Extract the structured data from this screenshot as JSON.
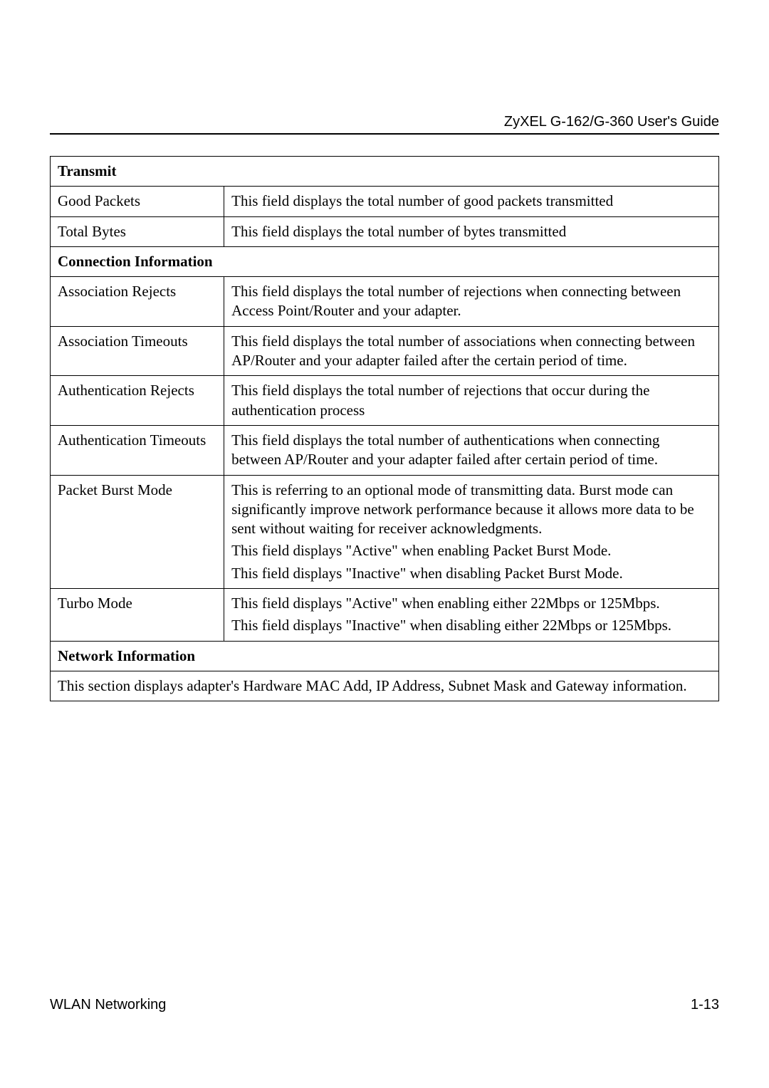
{
  "header": {
    "guide_title": "ZyXEL G-162/G-360 User's Guide"
  },
  "table": {
    "border_color": "#000000",
    "background_color": "#ffffff",
    "font_family_serif": "Times New Roman",
    "font_size_pt": 16,
    "sections": {
      "transmit": {
        "heading": "Transmit",
        "rows": [
          {
            "label": "Good Packets",
            "desc": [
              "This field displays the total number of good packets transmitted"
            ]
          },
          {
            "label": "Total Bytes",
            "desc": [
              "This field displays the total number of bytes transmitted"
            ]
          }
        ]
      },
      "connection": {
        "heading": "Connection Information",
        "rows": [
          {
            "label": "Association Rejects",
            "desc": [
              "This field displays the total number of rejections when connecting between Access Point/Router and your adapter."
            ]
          },
          {
            "label": "Association Timeouts",
            "desc": [
              "This field displays the total number of associations when connecting between AP/Router and your adapter failed after the certain period of time."
            ]
          },
          {
            "label": "Authentication Rejects",
            "desc": [
              "This field displays the total number of rejections that occur during the authentication process"
            ]
          },
          {
            "label": "Authentication Timeouts",
            "desc": [
              "This field displays the total number of authentications when connecting between AP/Router and your adapter failed after certain period of time."
            ]
          },
          {
            "label": "Packet Burst Mode",
            "desc": [
              "This is referring to an optional mode of transmitting data.  Burst mode can significantly improve network performance because it allows more data to be sent without waiting for receiver acknowledgments.",
              "This field displays \"Active\" when enabling Packet Burst Mode.",
              "This field displays \"Inactive\" when disabling Packet Burst Mode."
            ]
          },
          {
            "label": "Turbo Mode",
            "desc": [
              "This field displays \"Active\" when enabling either 22Mbps or 125Mbps.",
              "This field displays \"Inactive\" when disabling either 22Mbps or 125Mbps."
            ]
          }
        ]
      },
      "network": {
        "heading": "Network Information",
        "note": "This section displays adapter's Hardware MAC Add, IP Address, Subnet Mask and Gateway information."
      }
    }
  },
  "footer": {
    "left": "WLAN Networking",
    "right": "1-13"
  }
}
